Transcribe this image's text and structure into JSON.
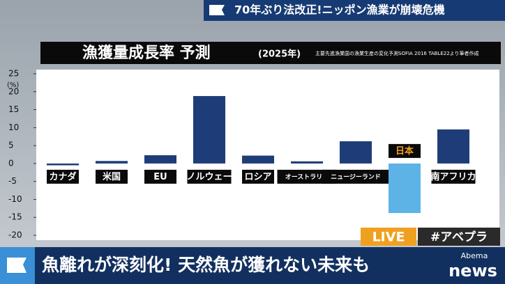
{
  "header": {
    "headline": "70年ぶり法改正!ニッポン漁業が崩壊危機"
  },
  "chart_data": {
    "type": "bar",
    "title": "漁獲量成長率 予測",
    "subtitle": "(2025年)",
    "source": "主要先進漁業国の漁業生産の変化予測SOFIA 2016 TABLE22より筆者作成",
    "y_unit": "(%)",
    "categories": [
      "カナダ",
      "米国",
      "EU",
      "ノルウェー",
      "ロシア",
      "オーストラリア",
      "ニュージーランド",
      "日本",
      "南アフリカ"
    ],
    "values": [
      -0.5,
      0.7,
      2.3,
      18.8,
      2.2,
      0.6,
      6.2,
      -13.8,
      9.5
    ],
    "colors": [
      "#1e3d78",
      "#1e3d78",
      "#1e3d78",
      "#1e3d78",
      "#1e3d78",
      "#1e3d78",
      "#1e3d78",
      "#5db3e6",
      "#1e3d78"
    ],
    "ylim": [
      -20,
      25
    ],
    "yticks": [
      -20,
      -15,
      -10,
      -5,
      0,
      5,
      10,
      15,
      20,
      25
    ]
  },
  "badges": {
    "live": "LIVE",
    "hashtag": "#アベプラ"
  },
  "footer": {
    "caption": "魚離れが深刻化! 天然魚が獲れない未来も",
    "logo_top": "Abema",
    "logo_bottom": "news"
  }
}
